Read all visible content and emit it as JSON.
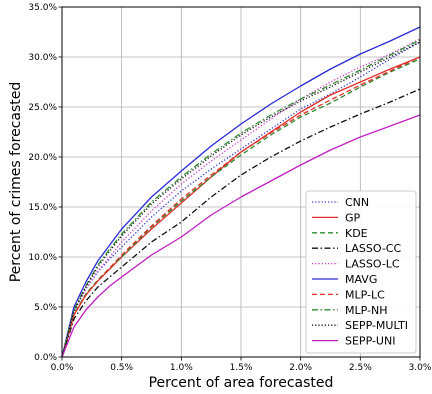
{
  "chart_data": {
    "type": "line",
    "xlabel": "Percent of area forecasted",
    "ylabel": "Percent of crimes forecasted",
    "xlim": [
      0,
      0.03
    ],
    "ylim": [
      0,
      0.35
    ],
    "grid": true,
    "legend_placement": "bottom-right",
    "x_ticks": [
      {
        "value": 0.0,
        "label": "0.0%"
      },
      {
        "value": 0.005,
        "label": "0.5%"
      },
      {
        "value": 0.01,
        "label": "1.0%"
      },
      {
        "value": 0.015,
        "label": "1.5%"
      },
      {
        "value": 0.02,
        "label": "2.0%"
      },
      {
        "value": 0.025,
        "label": "2.5%"
      },
      {
        "value": 0.03,
        "label": "3.0%"
      }
    ],
    "y_ticks": [
      {
        "value": 0.0,
        "label": "0.0%"
      },
      {
        "value": 0.05,
        "label": "5.0%"
      },
      {
        "value": 0.1,
        "label": "10.0%"
      },
      {
        "value": 0.15,
        "label": "15.0%"
      },
      {
        "value": 0.2,
        "label": "20.0%"
      },
      {
        "value": 0.25,
        "label": "25.0%"
      },
      {
        "value": 0.3,
        "label": "30.0%"
      },
      {
        "value": 0.35,
        "label": "35.0%"
      }
    ],
    "x": [
      0,
      0.001,
      0.002,
      0.003,
      0.004,
      0.005,
      0.0075,
      0.01,
      0.0125,
      0.015,
      0.0175,
      0.02,
      0.0225,
      0.025,
      0.0275,
      0.03
    ],
    "series": [
      {
        "name": "CNN",
        "color": "#3333cc",
        "dash": "dotted",
        "values": [
          0,
          0.045,
          0.068,
          0.085,
          0.098,
          0.11,
          0.14,
          0.166,
          0.188,
          0.208,
          0.228,
          0.248,
          0.263,
          0.28,
          0.298,
          0.315
        ]
      },
      {
        "name": "GP",
        "color": "#e0302a",
        "dash": "solid",
        "values": [
          0,
          0.042,
          0.062,
          0.076,
          0.088,
          0.1,
          0.128,
          0.154,
          0.18,
          0.205,
          0.225,
          0.245,
          0.262,
          0.275,
          0.288,
          0.3
        ]
      },
      {
        "name": "KDE",
        "color": "#2e8b2e",
        "dash": "dashed",
        "values": [
          0,
          0.043,
          0.063,
          0.077,
          0.089,
          0.1,
          0.13,
          0.156,
          0.18,
          0.202,
          0.222,
          0.24,
          0.254,
          0.27,
          0.285,
          0.298
        ]
      },
      {
        "name": "LASSO-CC",
        "color": "#111111",
        "dash": "dashdot",
        "values": [
          0,
          0.038,
          0.056,
          0.07,
          0.08,
          0.09,
          0.115,
          0.135,
          0.16,
          0.182,
          0.2,
          0.216,
          0.23,
          0.243,
          0.255,
          0.268
        ]
      },
      {
        "name": "LASSO-LC",
        "color": "#cc33cc",
        "dash": "dotted",
        "values": [
          0,
          0.046,
          0.068,
          0.086,
          0.1,
          0.115,
          0.146,
          0.173,
          0.196,
          0.217,
          0.238,
          0.258,
          0.275,
          0.29,
          0.303,
          0.318
        ]
      },
      {
        "name": "MAVG",
        "color": "#2a2ad8",
        "dash": "solid",
        "values": [
          0,
          0.05,
          0.075,
          0.096,
          0.112,
          0.128,
          0.16,
          0.186,
          0.211,
          0.233,
          0.253,
          0.271,
          0.288,
          0.303,
          0.316,
          0.33
        ]
      },
      {
        "name": "MLP-LC",
        "color": "#e0302a",
        "dash": "dashed",
        "values": [
          0,
          0.042,
          0.062,
          0.076,
          0.089,
          0.102,
          0.131,
          0.158,
          0.182,
          0.205,
          0.224,
          0.242,
          0.257,
          0.272,
          0.286,
          0.3
        ]
      },
      {
        "name": "MLP-NH",
        "color": "#2e8b2e",
        "dash": "dashdot",
        "values": [
          0,
          0.047,
          0.071,
          0.092,
          0.108,
          0.123,
          0.155,
          0.18,
          0.203,
          0.224,
          0.242,
          0.258,
          0.272,
          0.287,
          0.302,
          0.317
        ]
      },
      {
        "name": "SEPP-MULTI",
        "color": "#111111",
        "dash": "dotted",
        "values": [
          0,
          0.046,
          0.07,
          0.09,
          0.106,
          0.121,
          0.153,
          0.178,
          0.201,
          0.222,
          0.24,
          0.256,
          0.27,
          0.285,
          0.3,
          0.315
        ]
      },
      {
        "name": "SEPP-UNI",
        "color": "#c21fc2",
        "dash": "solid",
        "values": [
          0,
          0.03,
          0.047,
          0.06,
          0.071,
          0.08,
          0.102,
          0.12,
          0.142,
          0.16,
          0.176,
          0.192,
          0.207,
          0.22,
          0.231,
          0.242
        ]
      }
    ]
  }
}
